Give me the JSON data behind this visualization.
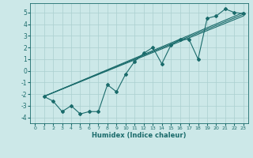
{
  "xlabel": "Humidex (Indice chaleur)",
  "background_color": "#cce8e8",
  "grid_color": "#aacfcf",
  "line_color": "#1a6b6b",
  "xlim": [
    -0.5,
    23.5
  ],
  "ylim": [
    -4.5,
    5.8
  ],
  "yticks": [
    -4,
    -3,
    -2,
    -1,
    0,
    1,
    2,
    3,
    4,
    5
  ],
  "xticks": [
    0,
    1,
    2,
    3,
    4,
    5,
    6,
    7,
    8,
    9,
    10,
    11,
    12,
    13,
    14,
    15,
    16,
    17,
    18,
    19,
    20,
    21,
    22,
    23
  ],
  "jagged_x": [
    1,
    2,
    3,
    4,
    5,
    6,
    7,
    8,
    9,
    10,
    11,
    12,
    13,
    14,
    15,
    16,
    17,
    18,
    19,
    20,
    21,
    22,
    23
  ],
  "jagged_y": [
    -2.2,
    -2.6,
    -3.5,
    -3.0,
    -3.7,
    -3.5,
    -3.5,
    -1.2,
    -1.8,
    -0.3,
    0.8,
    1.5,
    2.0,
    0.6,
    2.2,
    2.7,
    2.7,
    1.0,
    4.5,
    4.7,
    5.3,
    5.0,
    4.9
  ],
  "line1_x": [
    1,
    23
  ],
  "line1_y": [
    -2.2,
    5.0
  ],
  "line2_x": [
    1,
    23
  ],
  "line2_y": [
    -2.2,
    4.85
  ],
  "line3_x": [
    1,
    23
  ],
  "line3_y": [
    -2.2,
    4.7
  ]
}
